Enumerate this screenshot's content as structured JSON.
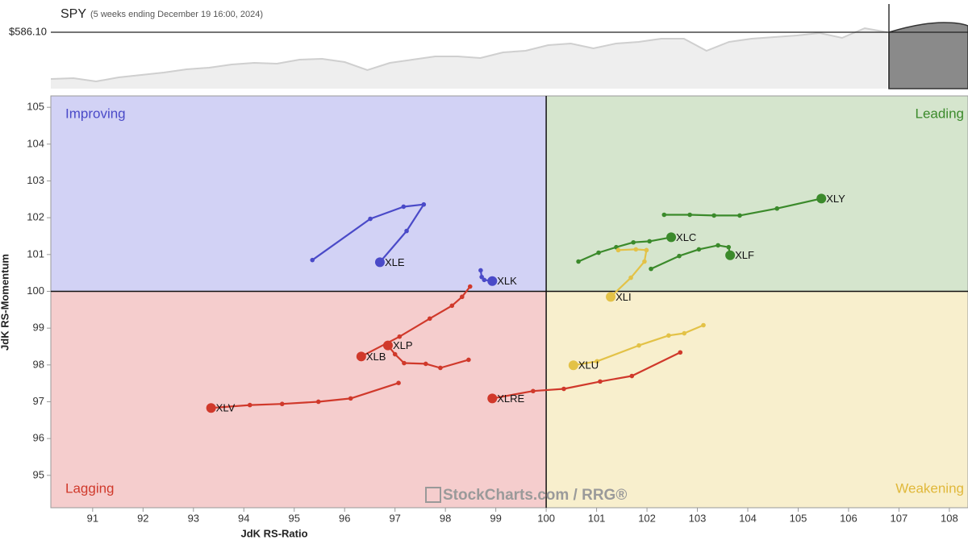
{
  "chart_data": [
    {
      "type": "rrg",
      "xlabel": "JdK RS-Ratio",
      "ylabel": "JdK RS-Momentum",
      "xlim": [
        90.17,
        108.37
      ],
      "ylim": [
        94.12,
        105.31
      ],
      "xticks": [
        91,
        92,
        93,
        94,
        95,
        96,
        97,
        98,
        99,
        100,
        101,
        102,
        103,
        104,
        105,
        106,
        107,
        108
      ],
      "yticks": [
        95,
        96,
        97,
        98,
        99,
        100,
        101,
        102,
        103,
        104,
        105
      ],
      "center": {
        "x": 100,
        "y": 100
      },
      "quadrants": [
        {
          "name": "Improving",
          "position": "top-left",
          "background": "#d2d2f5",
          "color": "#4a4ac8"
        },
        {
          "name": "Leading",
          "position": "top-right",
          "background": "#d5e5cd",
          "color": "#3b8a2b"
        },
        {
          "name": "Lagging",
          "position": "bottom-left",
          "background": "#f5cdcd",
          "color": "#d0392b"
        },
        {
          "name": "Weakening",
          "position": "bottom-right",
          "background": "#f8efcd",
          "color": "#e0b83a"
        }
      ],
      "watermark": "StockCharts.com / RRG®",
      "series": [
        {
          "name": "XLE",
          "color": "#4a4ac8",
          "x": [
            95.36,
            96.51,
            97.17,
            97.57,
            97.23,
            96.7
          ],
          "values": [
            100.85,
            101.97,
            102.3,
            102.36,
            101.64,
            100.79
          ]
        },
        {
          "name": "XLK",
          "color": "#4a4ac8",
          "x": [
            98.7,
            98.72,
            98.77,
            98.93
          ],
          "values": [
            100.57,
            100.39,
            100.31,
            100.28
          ]
        },
        {
          "name": "XLY",
          "color": "#3b8a2b",
          "x": [
            102.34,
            102.85,
            103.33,
            103.84,
            104.58,
            105.46
          ],
          "values": [
            102.08,
            102.08,
            102.06,
            102.06,
            102.25,
            102.52
          ]
        },
        {
          "name": "XLC",
          "color": "#3b8a2b",
          "x": [
            100.64,
            101.04,
            101.39,
            101.73,
            102.05,
            102.48
          ],
          "values": [
            100.81,
            101.05,
            101.2,
            101.33,
            101.36,
            101.47
          ]
        },
        {
          "name": "XLF",
          "color": "#3b8a2b",
          "x": [
            102.08,
            102.64,
            103.03,
            103.41,
            103.62,
            103.65
          ],
          "values": [
            100.61,
            100.96,
            101.14,
            101.25,
            101.2,
            100.98
          ]
        },
        {
          "name": "XLI",
          "color": "#e3c247",
          "x": [
            101.43,
            101.78,
            101.99,
            101.95,
            101.68,
            101.28
          ],
          "values": [
            101.12,
            101.14,
            101.12,
            100.81,
            100.37,
            99.85
          ]
        },
        {
          "name": "XLU",
          "color": "#e3c247",
          "x": [
            103.12,
            102.74,
            102.43,
            101.84,
            101.01,
            100.54
          ],
          "values": [
            99.08,
            98.86,
            98.8,
            98.53,
            98.1,
            97.99
          ]
        },
        {
          "name": "XLRE",
          "color": "#d0392b",
          "x": [
            102.66,
            101.7,
            101.07,
            100.35,
            99.74,
            98.93
          ],
          "values": [
            98.34,
            97.7,
            97.55,
            97.35,
            97.29,
            97.09
          ]
        },
        {
          "name": "XLP",
          "color": "#d0392b",
          "x": [
            98.46,
            97.9,
            97.61,
            97.18,
            97.0,
            96.86
          ],
          "values": [
            98.14,
            97.92,
            98.03,
            98.05,
            98.29,
            98.53
          ]
        },
        {
          "name": "XLB",
          "color": "#d0392b",
          "x": [
            98.49,
            98.33,
            98.13,
            97.69,
            97.09,
            96.33
          ],
          "values": [
            100.13,
            99.85,
            99.61,
            99.26,
            98.77,
            98.23
          ]
        },
        {
          "name": "XLV",
          "color": "#d0392b",
          "x": [
            97.07,
            96.12,
            95.48,
            94.76,
            94.12,
            93.35
          ],
          "values": [
            97.51,
            97.09,
            97.0,
            96.94,
            96.91,
            96.83
          ]
        }
      ]
    },
    {
      "type": "area",
      "title": "SPY",
      "subtitle": "(5 weeks ending December 19 16:00, 2024)",
      "ylim": [
        572,
        593.15
      ],
      "price_line": {
        "value": 586.1,
        "label": "$586.10"
      },
      "color": "#cfcfcf",
      "values": [
        574.42,
        574.62,
        573.81,
        574.82,
        575.42,
        576.03,
        576.83,
        577.24,
        578.04,
        578.45,
        578.24,
        579.25,
        579.45,
        578.65,
        576.63,
        578.45,
        579.25,
        580.06,
        580.06,
        579.65,
        581.06,
        581.47,
        582.88,
        583.28,
        582.07,
        583.28,
        583.68,
        584.49,
        584.49,
        581.47,
        583.68,
        584.49,
        584.89,
        585.29,
        585.9,
        584.69,
        587.11,
        586.1
      ]
    }
  ]
}
